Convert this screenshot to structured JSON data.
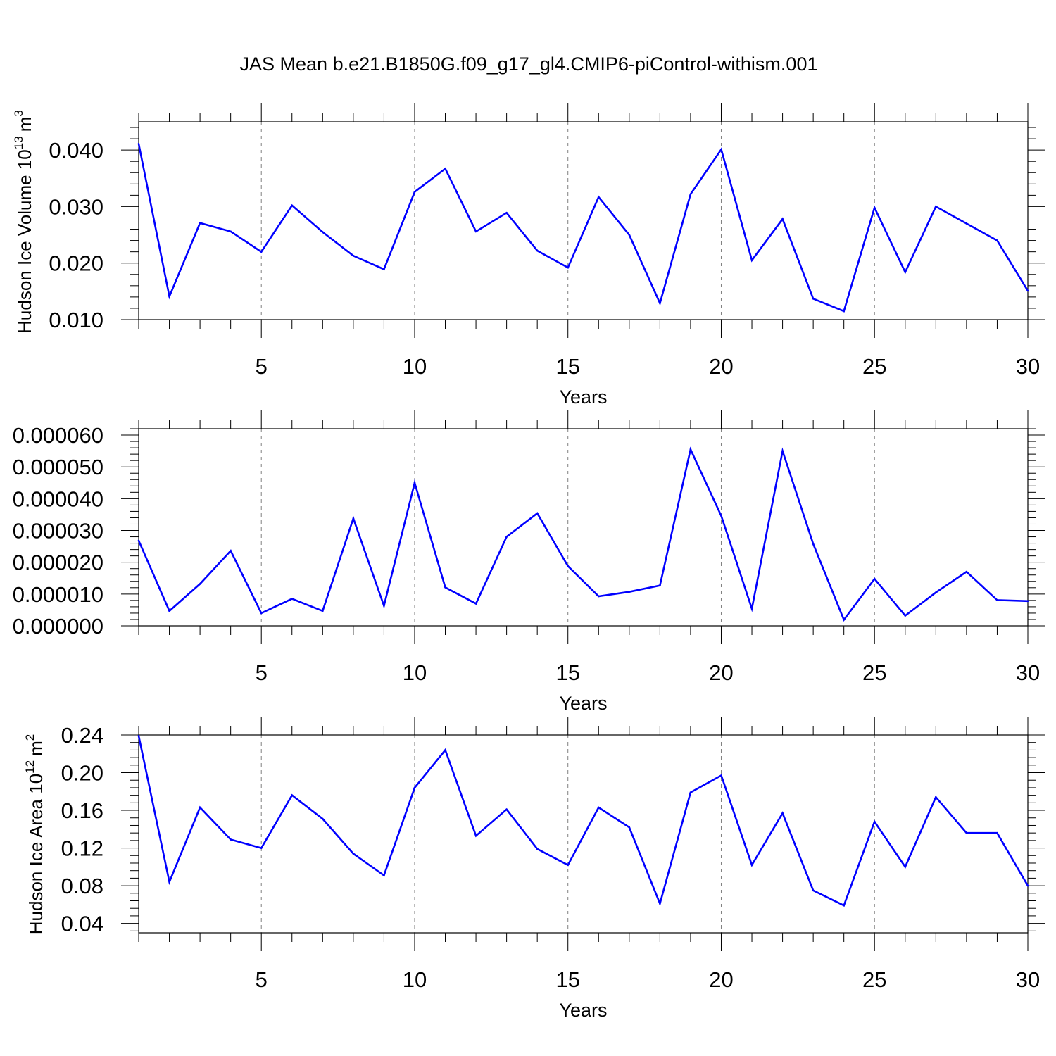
{
  "title": "JAS Mean b.e21.B1850G.f09_g17_gl4.CMIP6-piControl-withism.001",
  "line_color": "#0000ff",
  "chart_data": [
    {
      "type": "line",
      "xlabel": "Years",
      "ylabel_main": "Hudson Ice Volume 10",
      "ylabel_exp": "13",
      "ylabel_unit": "m",
      "ylabel_unit_exp": "3",
      "xlim": [
        1,
        30
      ],
      "ylim": [
        0.01,
        0.045
      ],
      "yticks": [
        "0.010",
        "0.020",
        "0.030",
        "0.040"
      ],
      "ytick_values": [
        0.01,
        0.02,
        0.03,
        0.04
      ],
      "xticks": [
        "5",
        "10",
        "15",
        "20",
        "25",
        "30"
      ],
      "xtick_values": [
        5,
        10,
        15,
        20,
        25,
        30
      ],
      "x": [
        1,
        2,
        3,
        4,
        5,
        6,
        7,
        8,
        9,
        10,
        11,
        12,
        13,
        14,
        15,
        16,
        17,
        18,
        19,
        20,
        21,
        22,
        23,
        24,
        25,
        26,
        27,
        28,
        29,
        30
      ],
      "values": [
        0.0411,
        0.0141,
        0.0271,
        0.0256,
        0.022,
        0.0302,
        0.0255,
        0.0213,
        0.0189,
        0.0326,
        0.0367,
        0.0256,
        0.0289,
        0.0222,
        0.0192,
        0.0317,
        0.025,
        0.0129,
        0.0322,
        0.0401,
        0.0205,
        0.0278,
        0.0137,
        0.0115,
        0.0298,
        0.0184,
        0.03,
        0.027,
        0.024,
        0.0151
      ]
    },
    {
      "type": "line",
      "xlabel": "Years",
      "xlim": [
        1,
        30
      ],
      "ylim": [
        0.0,
        6.2e-05
      ],
      "yticks": [
        "0.000000",
        "0.000010",
        "0.000020",
        "0.000030",
        "0.000040",
        "0.000050",
        "0.000060"
      ],
      "ytick_values": [
        0.0,
        1e-05,
        2e-05,
        3e-05,
        4e-05,
        5e-05,
        6e-05
      ],
      "xticks": [
        "5",
        "10",
        "15",
        "20",
        "25",
        "30"
      ],
      "xtick_values": [
        5,
        10,
        15,
        20,
        25,
        30
      ],
      "x": [
        1,
        2,
        3,
        4,
        5,
        6,
        7,
        8,
        9,
        10,
        11,
        12,
        13,
        14,
        15,
        16,
        17,
        18,
        19,
        20,
        21,
        22,
        23,
        24,
        25,
        26,
        27,
        28,
        29,
        30
      ],
      "values": [
        2.68e-05,
        4.7e-06,
        1.32e-05,
        2.36e-05,
        4e-06,
        8.5e-06,
        4.7e-06,
        3.38e-05,
        6.3e-06,
        4.5e-05,
        1.21e-05,
        7e-06,
        2.8e-05,
        3.54e-05,
        1.88e-05,
        9.3e-06,
        1.07e-05,
        1.27e-05,
        5.55e-05,
        3.46e-05,
        5.4e-06,
        5.5e-05,
        2.58e-05,
        1.9e-06,
        1.48e-05,
        3.2e-06,
        1.05e-05,
        1.7e-05,
        8.1e-06,
        7.8e-06
      ]
    },
    {
      "type": "line",
      "xlabel": "Years",
      "ylabel_main": "Hudson Ice Area 10",
      "ylabel_exp": "12",
      "ylabel_unit": "m",
      "ylabel_unit_exp": "2",
      "xlim": [
        1,
        30
      ],
      "ylim": [
        0.03,
        0.24
      ],
      "yticks": [
        "0.04",
        "0.08",
        "0.12",
        "0.16",
        "0.20",
        "0.24"
      ],
      "ytick_values": [
        0.04,
        0.08,
        0.12,
        0.16,
        0.2,
        0.24
      ],
      "xticks": [
        "5",
        "10",
        "15",
        "20",
        "25",
        "30"
      ],
      "xtick_values": [
        5,
        10,
        15,
        20,
        25,
        30
      ],
      "x": [
        1,
        2,
        3,
        4,
        5,
        6,
        7,
        8,
        9,
        10,
        11,
        12,
        13,
        14,
        15,
        16,
        17,
        18,
        19,
        20,
        21,
        22,
        23,
        24,
        25,
        26,
        27,
        28,
        29,
        30
      ],
      "values": [
        0.239,
        0.084,
        0.163,
        0.129,
        0.12,
        0.176,
        0.151,
        0.114,
        0.091,
        0.184,
        0.224,
        0.133,
        0.161,
        0.119,
        0.102,
        0.163,
        0.142,
        0.061,
        0.179,
        0.197,
        0.102,
        0.157,
        0.075,
        0.059,
        0.148,
        0.1,
        0.174,
        0.136,
        0.136,
        0.08
      ]
    }
  ]
}
